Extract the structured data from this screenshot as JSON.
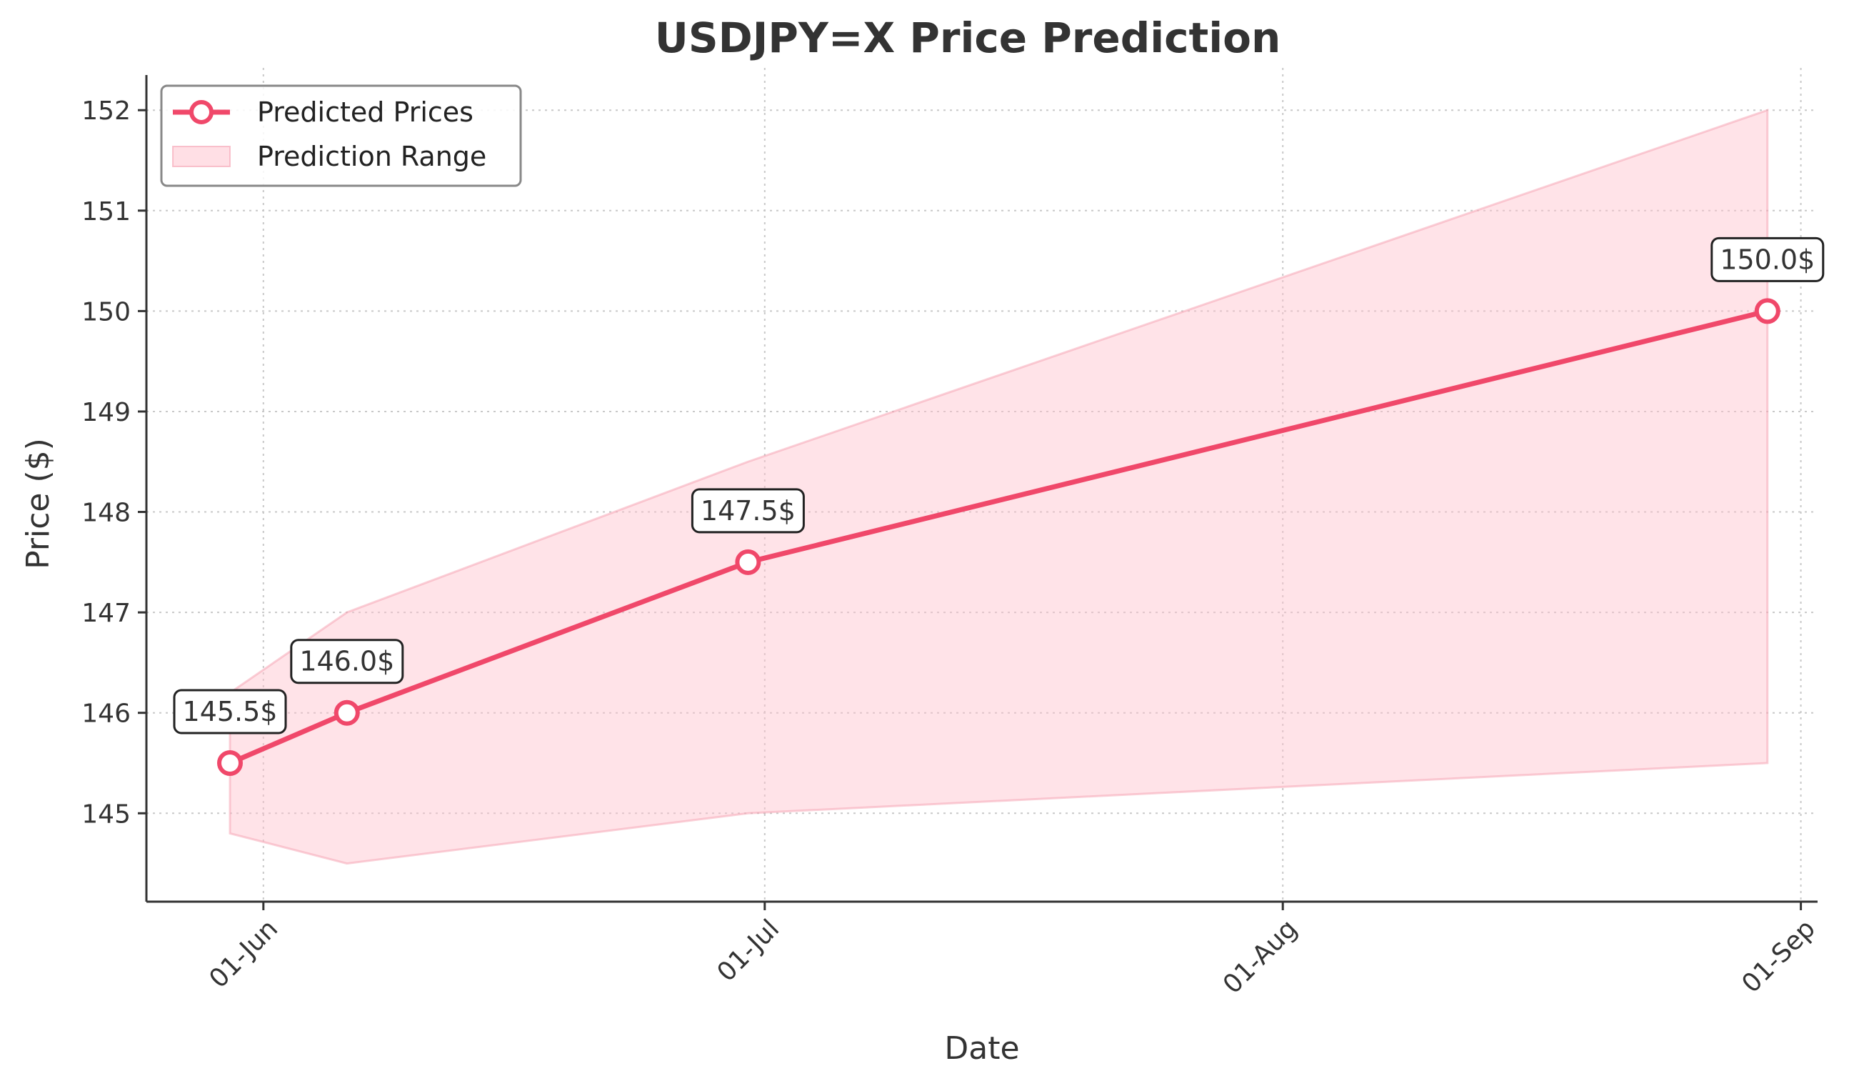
{
  "chart_data": {
    "type": "line",
    "title": "USDJPY=X Price Prediction",
    "xlabel": "Date",
    "ylabel": "Price ($)",
    "x_ticks": [
      {
        "date": "2024-06-01",
        "label": "01-Jun"
      },
      {
        "date": "2024-07-01",
        "label": "01-Jul"
      },
      {
        "date": "2024-08-01",
        "label": "01-Aug"
      },
      {
        "date": "2024-09-01",
        "label": "01-Sep"
      }
    ],
    "y_ticks": [
      145,
      146,
      147,
      148,
      149,
      150,
      151,
      152
    ],
    "xlim": [
      "2024-05-25",
      "2024-09-02"
    ],
    "ylim": [
      144.12,
      152.35
    ],
    "grid": true,
    "legend_position": "top-left",
    "series": [
      {
        "name": "Predicted Prices",
        "type": "line",
        "color": "#f0486a",
        "points": [
          {
            "date": "2024-05-30",
            "value": 145.5,
            "label": "145.5$"
          },
          {
            "date": "2024-06-06",
            "value": 146.0,
            "label": "146.0$"
          },
          {
            "date": "2024-06-30",
            "value": 147.5,
            "label": "147.5$"
          },
          {
            "date": "2024-08-30",
            "value": 150.0,
            "label": "150.0$"
          }
        ]
      },
      {
        "name": "Prediction Range",
        "type": "area",
        "color": "#ffc0cb",
        "points": [
          {
            "date": "2024-05-30",
            "low": 144.8,
            "high": 146.2
          },
          {
            "date": "2024-06-06",
            "low": 144.5,
            "high": 147.0
          },
          {
            "date": "2024-06-30",
            "low": 145.0,
            "high": 148.5
          },
          {
            "date": "2024-08-30",
            "low": 145.5,
            "high": 152.0
          }
        ]
      }
    ]
  }
}
